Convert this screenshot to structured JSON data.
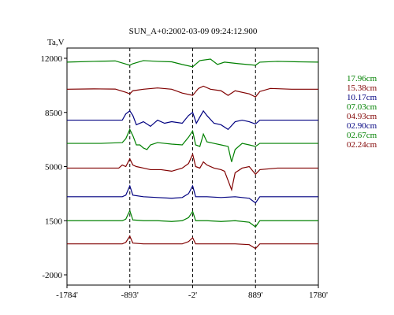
{
  "chart_data": {
    "type": "line",
    "title": "SUN_A+0:2002-03-09 09:24:12.900",
    "ylabel": "Ta,V",
    "xlim": [
      -1784,
      1780
    ],
    "ylim": [
      -2000,
      12000
    ],
    "x_ticks": [
      -1784,
      -893,
      -2,
      889,
      1780
    ],
    "x_tick_labels": [
      "-1784'",
      "-893'",
      "-2'",
      "889'",
      "1780'"
    ],
    "y_ticks": [
      12000,
      8500,
      5000,
      1500,
      -2000
    ],
    "y_tick_labels": [
      "12000",
      "8500",
      "5000",
      "1500",
      "-2000"
    ],
    "vlines_x": [
      -893,
      -2,
      889
    ],
    "legend_position": "right",
    "series": [
      {
        "name": "17.96cm",
        "color": "#008000",
        "baseline": 11750,
        "points": [
          [
            -1784,
            0
          ],
          [
            -1400,
            50
          ],
          [
            -1100,
            80
          ],
          [
            -950,
            -120
          ],
          [
            -893,
            -200
          ],
          [
            -850,
            -100
          ],
          [
            -700,
            100
          ],
          [
            -500,
            50
          ],
          [
            -300,
            20
          ],
          [
            -150,
            -150
          ],
          [
            -2,
            -300
          ],
          [
            100,
            100
          ],
          [
            250,
            200
          ],
          [
            350,
            -150
          ],
          [
            450,
            0
          ],
          [
            650,
            -100
          ],
          [
            889,
            -200
          ],
          [
            950,
            0
          ],
          [
            1200,
            50
          ],
          [
            1500,
            20
          ],
          [
            1780,
            0
          ]
        ]
      },
      {
        "name": "15.38cm",
        "color": "#800000",
        "baseline": 10000,
        "points": [
          [
            -1784,
            0
          ],
          [
            -1400,
            20
          ],
          [
            -1100,
            10
          ],
          [
            -950,
            -200
          ],
          [
            -893,
            -300
          ],
          [
            -850,
            -100
          ],
          [
            -700,
            0
          ],
          [
            -500,
            80
          ],
          [
            -300,
            0
          ],
          [
            -150,
            -250
          ],
          [
            -2,
            -400
          ],
          [
            80,
            50
          ],
          [
            150,
            200
          ],
          [
            250,
            0
          ],
          [
            400,
            -100
          ],
          [
            500,
            -400
          ],
          [
            600,
            -100
          ],
          [
            800,
            -300
          ],
          [
            889,
            -500
          ],
          [
            950,
            -150
          ],
          [
            1100,
            50
          ],
          [
            1400,
            0
          ],
          [
            1780,
            0
          ]
        ]
      },
      {
        "name": "10.17cm",
        "color": "#000080",
        "baseline": 8000,
        "points": [
          [
            -1784,
            0
          ],
          [
            -1200,
            0
          ],
          [
            -1000,
            0
          ],
          [
            -950,
            400
          ],
          [
            -893,
            600
          ],
          [
            -850,
            300
          ],
          [
            -800,
            -300
          ],
          [
            -700,
            -100
          ],
          [
            -600,
            -400
          ],
          [
            -500,
            0
          ],
          [
            -400,
            -200
          ],
          [
            -300,
            -100
          ],
          [
            -150,
            -200
          ],
          [
            -60,
            300
          ],
          [
            -2,
            500
          ],
          [
            50,
            -200
          ],
          [
            150,
            600
          ],
          [
            200,
            300
          ],
          [
            300,
            -200
          ],
          [
            400,
            -300
          ],
          [
            500,
            -600
          ],
          [
            600,
            -100
          ],
          [
            700,
            0
          ],
          [
            800,
            -100
          ],
          [
            889,
            -250
          ],
          [
            950,
            0
          ],
          [
            1200,
            0
          ],
          [
            1780,
            0
          ]
        ]
      },
      {
        "name": "07.03cm",
        "color": "#008000",
        "baseline": 6500,
        "points": [
          [
            -1784,
            0
          ],
          [
            -1300,
            0
          ],
          [
            -1000,
            50
          ],
          [
            -950,
            300
          ],
          [
            -893,
            900
          ],
          [
            -850,
            500
          ],
          [
            -800,
            -100
          ],
          [
            -750,
            -100
          ],
          [
            -700,
            -300
          ],
          [
            -650,
            -400
          ],
          [
            -600,
            -100
          ],
          [
            -500,
            50
          ],
          [
            -400,
            0
          ],
          [
            -300,
            -50
          ],
          [
            -150,
            -100
          ],
          [
            -60,
            400
          ],
          [
            -2,
            800
          ],
          [
            40,
            -100
          ],
          [
            100,
            -200
          ],
          [
            150,
            600
          ],
          [
            200,
            100
          ],
          [
            300,
            0
          ],
          [
            400,
            -100
          ],
          [
            500,
            -200
          ],
          [
            550,
            -1200
          ],
          [
            600,
            -400
          ],
          [
            700,
            0
          ],
          [
            800,
            -100
          ],
          [
            889,
            -200
          ],
          [
            950,
            0
          ],
          [
            1200,
            0
          ],
          [
            1780,
            0
          ]
        ]
      },
      {
        "name": "04.93cm",
        "color": "#800000",
        "baseline": 4900,
        "points": [
          [
            -1784,
            0
          ],
          [
            -1300,
            0
          ],
          [
            -1050,
            0
          ],
          [
            -1000,
            200
          ],
          [
            -950,
            100
          ],
          [
            -893,
            600
          ],
          [
            -850,
            200
          ],
          [
            -800,
            100
          ],
          [
            -700,
            0
          ],
          [
            -600,
            -100
          ],
          [
            -450,
            -100
          ],
          [
            -300,
            -200
          ],
          [
            -150,
            0
          ],
          [
            -60,
            300
          ],
          [
            -2,
            900
          ],
          [
            40,
            100
          ],
          [
            100,
            0
          ],
          [
            150,
            400
          ],
          [
            200,
            200
          ],
          [
            300,
            0
          ],
          [
            400,
            -100
          ],
          [
            450,
            -200
          ],
          [
            500,
            -800
          ],
          [
            550,
            -1400
          ],
          [
            600,
            -300
          ],
          [
            700,
            0
          ],
          [
            800,
            100
          ],
          [
            889,
            -400
          ],
          [
            950,
            -100
          ],
          [
            1200,
            0
          ],
          [
            1780,
            0
          ]
        ]
      },
      {
        "name": "02.90cm",
        "color": "#000080",
        "baseline": 3050,
        "points": [
          [
            -1784,
            0
          ],
          [
            -1300,
            0
          ],
          [
            -1000,
            0
          ],
          [
            -950,
            100
          ],
          [
            -893,
            700
          ],
          [
            -850,
            100
          ],
          [
            -700,
            0
          ],
          [
            -500,
            -50
          ],
          [
            -300,
            -100
          ],
          [
            -150,
            -50
          ],
          [
            -60,
            200
          ],
          [
            -2,
            700
          ],
          [
            40,
            0
          ],
          [
            200,
            0
          ],
          [
            400,
            -50
          ],
          [
            600,
            0
          ],
          [
            800,
            -100
          ],
          [
            889,
            -400
          ],
          [
            950,
            0
          ],
          [
            1200,
            0
          ],
          [
            1780,
            0
          ]
        ]
      },
      {
        "name": "02.67cm",
        "color": "#008000",
        "baseline": 1500,
        "points": [
          [
            -1784,
            0
          ],
          [
            -1300,
            0
          ],
          [
            -1000,
            0
          ],
          [
            -950,
            100
          ],
          [
            -893,
            650
          ],
          [
            -850,
            50
          ],
          [
            -700,
            0
          ],
          [
            -500,
            0
          ],
          [
            -300,
            -50
          ],
          [
            -150,
            0
          ],
          [
            -60,
            200
          ],
          [
            -2,
            600
          ],
          [
            40,
            0
          ],
          [
            200,
            0
          ],
          [
            400,
            -50
          ],
          [
            600,
            0
          ],
          [
            800,
            -100
          ],
          [
            889,
            -400
          ],
          [
            950,
            0
          ],
          [
            1200,
            0
          ],
          [
            1780,
            0
          ]
        ]
      },
      {
        "name": "02.24cm",
        "color": "#800000",
        "baseline": 0,
        "points": [
          [
            -1784,
            0
          ],
          [
            -1300,
            0
          ],
          [
            -1000,
            0
          ],
          [
            -950,
            100
          ],
          [
            -893,
            500
          ],
          [
            -850,
            50
          ],
          [
            -700,
            0
          ],
          [
            -500,
            0
          ],
          [
            -300,
            0
          ],
          [
            -150,
            0
          ],
          [
            -60,
            150
          ],
          [
            -2,
            400
          ],
          [
            40,
            0
          ],
          [
            200,
            0
          ],
          [
            400,
            0
          ],
          [
            600,
            0
          ],
          [
            800,
            -50
          ],
          [
            889,
            -300
          ],
          [
            950,
            0
          ],
          [
            1200,
            0
          ],
          [
            1780,
            0
          ]
        ]
      }
    ]
  }
}
